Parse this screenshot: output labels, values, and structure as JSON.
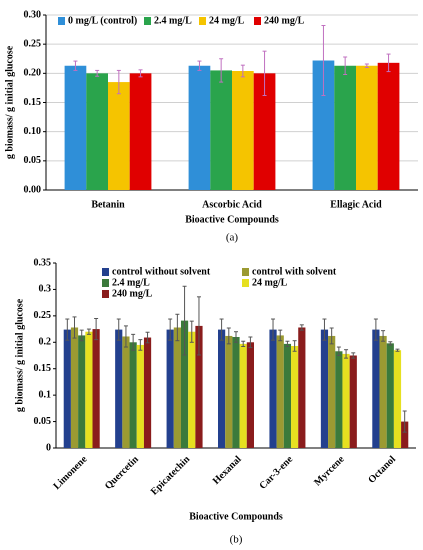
{
  "chart_data": [
    {
      "type": "bar",
      "ylabel": "g biomass/ g initial glucose",
      "xlabel": "Bioactive Compounds",
      "caption": "(a)",
      "categories": [
        "Betanin",
        "Ascorbic Acid",
        "Ellagic Acid"
      ],
      "series": [
        {
          "name": "0 mg/L (control)",
          "color": "#2f8fd8",
          "values": [
            0.213,
            0.213,
            0.222
          ],
          "errors": [
            0.008,
            0.008,
            0.06
          ]
        },
        {
          "name": "2.4 mg/L",
          "color": "#2aa44c",
          "values": [
            0.2,
            0.205,
            0.213
          ],
          "errors": [
            0.005,
            0.02,
            0.015
          ]
        },
        {
          "name": "24 mg/L",
          "color": "#f5c400",
          "values": [
            0.185,
            0.204,
            0.213
          ],
          "errors": [
            0.02,
            0.01,
            0.003
          ]
        },
        {
          "name": "240 mg/L",
          "color": "#e00000",
          "values": [
            0.2,
            0.2,
            0.218
          ],
          "errors": [
            0.006,
            0.038,
            0.015
          ]
        }
      ],
      "ylim": [
        0,
        0.3
      ],
      "yticks": [
        {
          "value": 0,
          "label": "0.00"
        },
        {
          "value": 0.05,
          "label": "0.05"
        },
        {
          "value": 0.1,
          "label": "0.10"
        },
        {
          "value": 0.15,
          "label": "0.15"
        },
        {
          "value": 0.2,
          "label": "0.20"
        },
        {
          "value": 0.25,
          "label": "0.25"
        },
        {
          "value": 0.3,
          "label": "0.30"
        }
      ],
      "grid": true,
      "legend": "upper left"
    },
    {
      "type": "bar",
      "ylabel": "g biomass/ g initial glucose",
      "xlabel": "Bioactive Compounds",
      "caption": "(b)",
      "categories": [
        "Limonene",
        "Quercetin",
        "Epicatechin",
        "Hexanal",
        "Car-3-ene",
        "Myrcene",
        "Octanol"
      ],
      "series": [
        {
          "name": "control without solvent",
          "color": "#23408e",
          "values": [
            0.224,
            0.224,
            0.224,
            0.224,
            0.224,
            0.224,
            0.224
          ],
          "errors": [
            0.02,
            0.02,
            0.02,
            0.02,
            0.02,
            0.02,
            0.02
          ]
        },
        {
          "name": "control with solvent",
          "color": "#9b9a32",
          "values": [
            0.228,
            0.211,
            0.228,
            0.212,
            0.213,
            0.212,
            0.212
          ],
          "errors": [
            0.02,
            0.02,
            0.025,
            0.015,
            0.01,
            0.015,
            0.01
          ]
        },
        {
          "name": "2.4 mg/L",
          "color": "#3b7a3b",
          "values": [
            0.213,
            0.2,
            0.241,
            0.21,
            0.197,
            0.183,
            0.198
          ],
          "errors": [
            0.01,
            0.015,
            0.065,
            0.01,
            0.005,
            0.008,
            0.003
          ]
        },
        {
          "name": "24 mg/L",
          "color": "#e6e020",
          "values": [
            0.22,
            0.195,
            0.22,
            0.197,
            0.193,
            0.178,
            0.185
          ],
          "errors": [
            0.005,
            0.01,
            0.02,
            0.005,
            0.01,
            0.008,
            0.002
          ]
        },
        {
          "name": "240 mg/L",
          "color": "#8a1c1c",
          "values": [
            0.225,
            0.209,
            0.231,
            0.2,
            0.228,
            0.175,
            0.05
          ],
          "errors": [
            0.02,
            0.01,
            0.055,
            0.01,
            0.005,
            0.005,
            0.02
          ]
        }
      ],
      "ylim": [
        0,
        0.35
      ],
      "yticks": [
        0,
        0.05,
        0.1,
        0.15,
        0.2,
        0.25,
        0.3,
        0.35
      ],
      "grid": false,
      "legend": "upper left"
    }
  ]
}
